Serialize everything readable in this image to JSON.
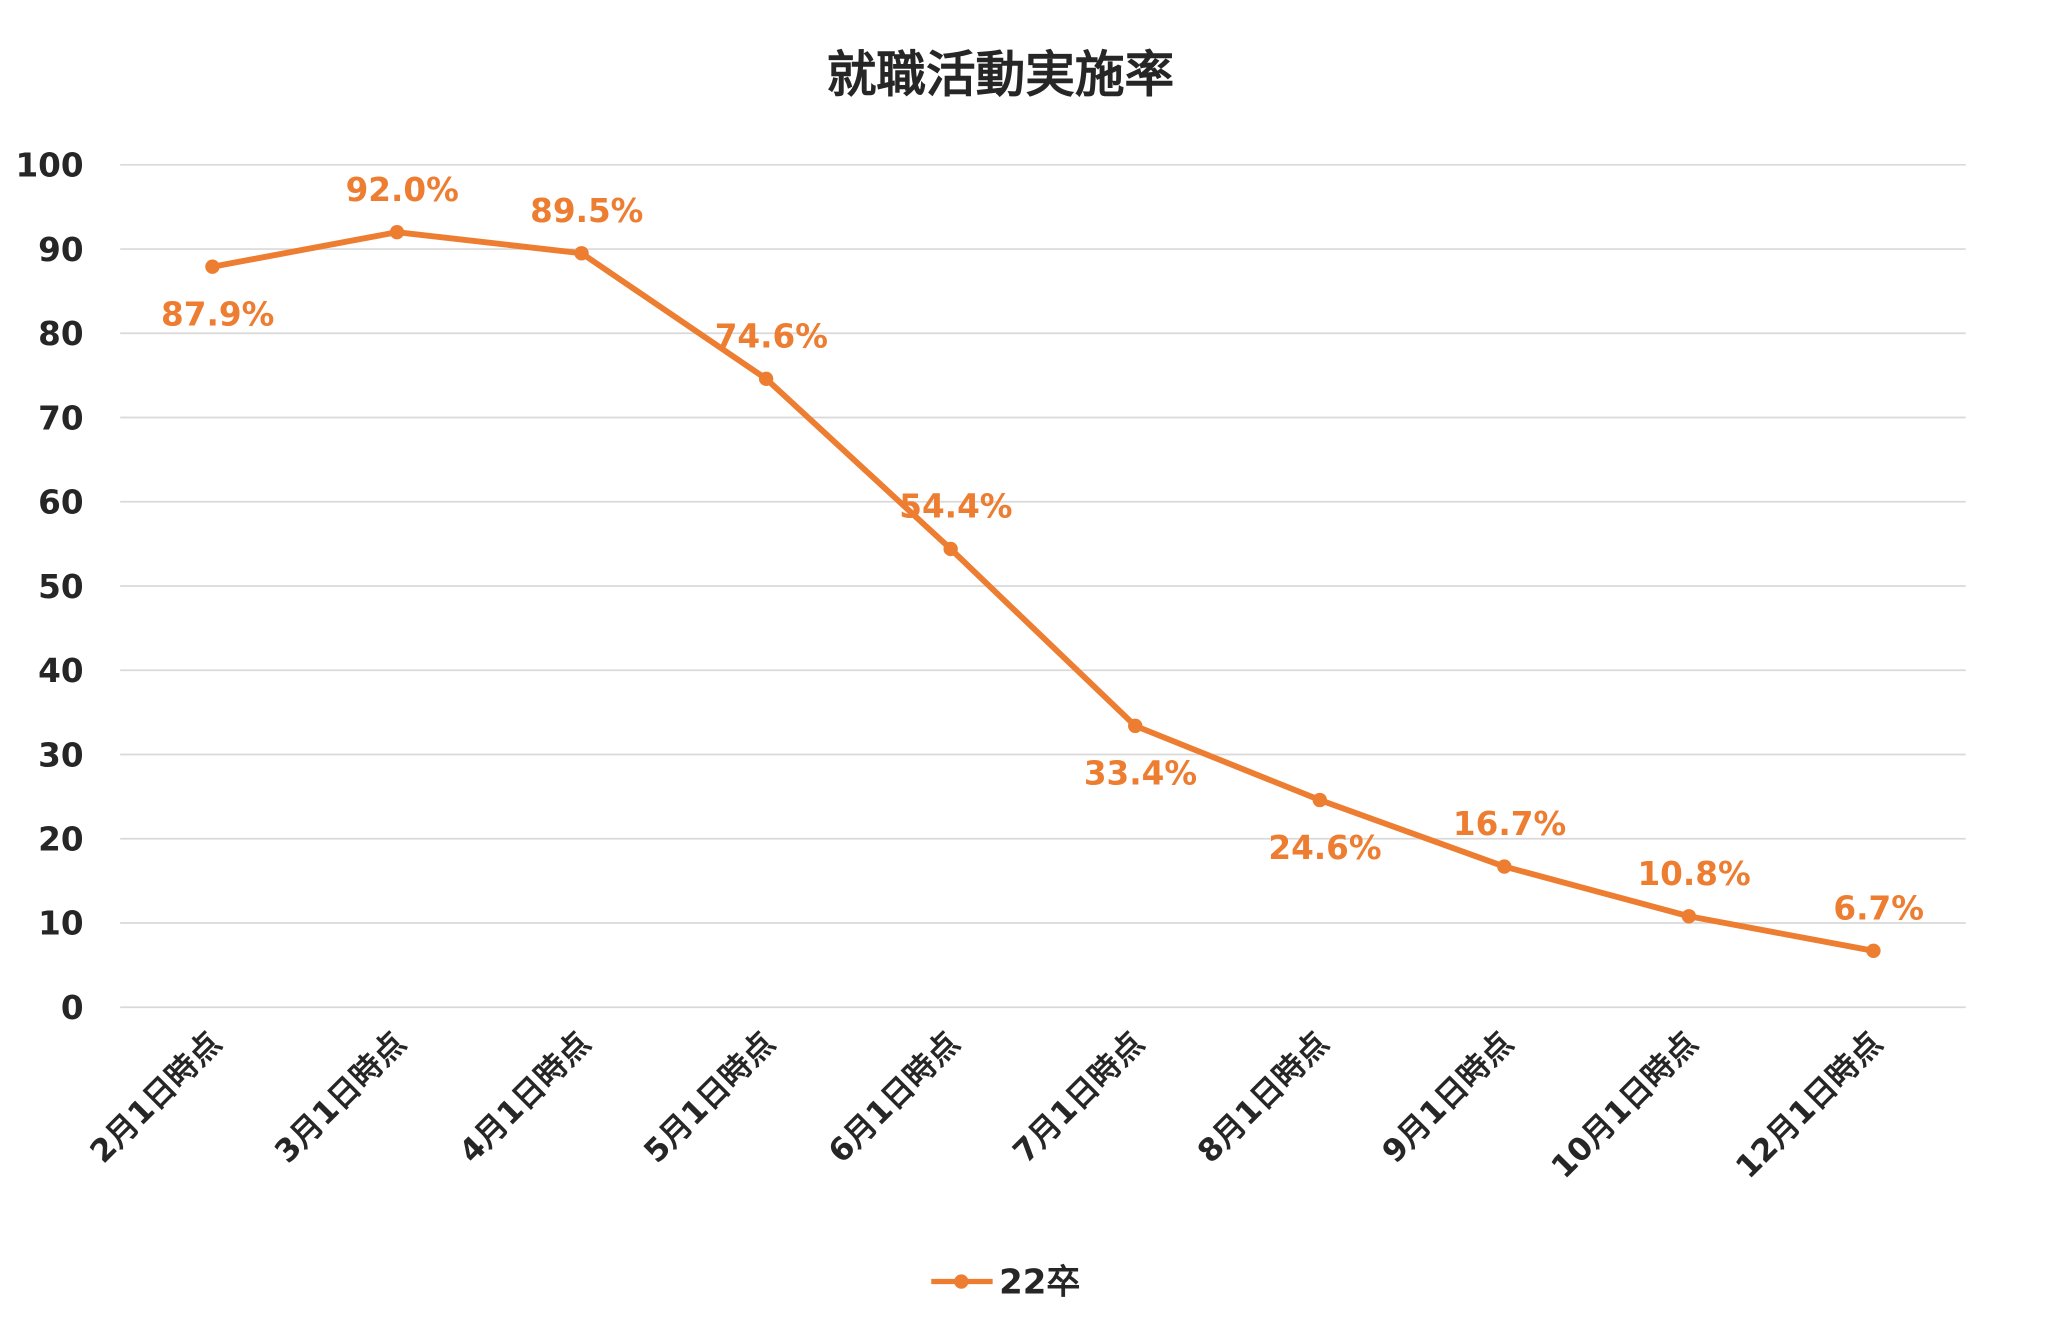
{
  "chart_data": {
    "type": "line",
    "title": "就職活動実施率",
    "xlabel": "",
    "ylabel": "",
    "ylim": [
      0,
      100
    ],
    "yticks": [
      "0",
      "10",
      "20",
      "30",
      "40",
      "50",
      "60",
      "70",
      "80",
      "90",
      "100"
    ],
    "grid": true,
    "legend_position": "bottom",
    "categories": [
      "2月1日時点",
      "3月1日時点",
      "4月1日時点",
      "5月1日時点",
      "6月1日時点",
      "7月1日時点",
      "8月1日時点",
      "9月1日時点",
      "10月1日時点",
      "12月1日時点"
    ],
    "series": [
      {
        "name": "22卒",
        "color": "#ED7D31",
        "values": [
          87.9,
          92.0,
          89.5,
          74.6,
          54.4,
          33.4,
          24.6,
          16.7,
          10.8,
          6.7
        ],
        "data_labels": [
          "87.9%",
          "92.0%",
          "89.5%",
          "74.6%",
          "54.4%",
          "33.4%",
          "24.6%",
          "16.7%",
          "10.8%",
          "6.7%"
        ],
        "label_side": [
          "below",
          "above",
          "above",
          "above",
          "above",
          "below",
          "below",
          "above",
          "above",
          "above"
        ]
      }
    ]
  }
}
